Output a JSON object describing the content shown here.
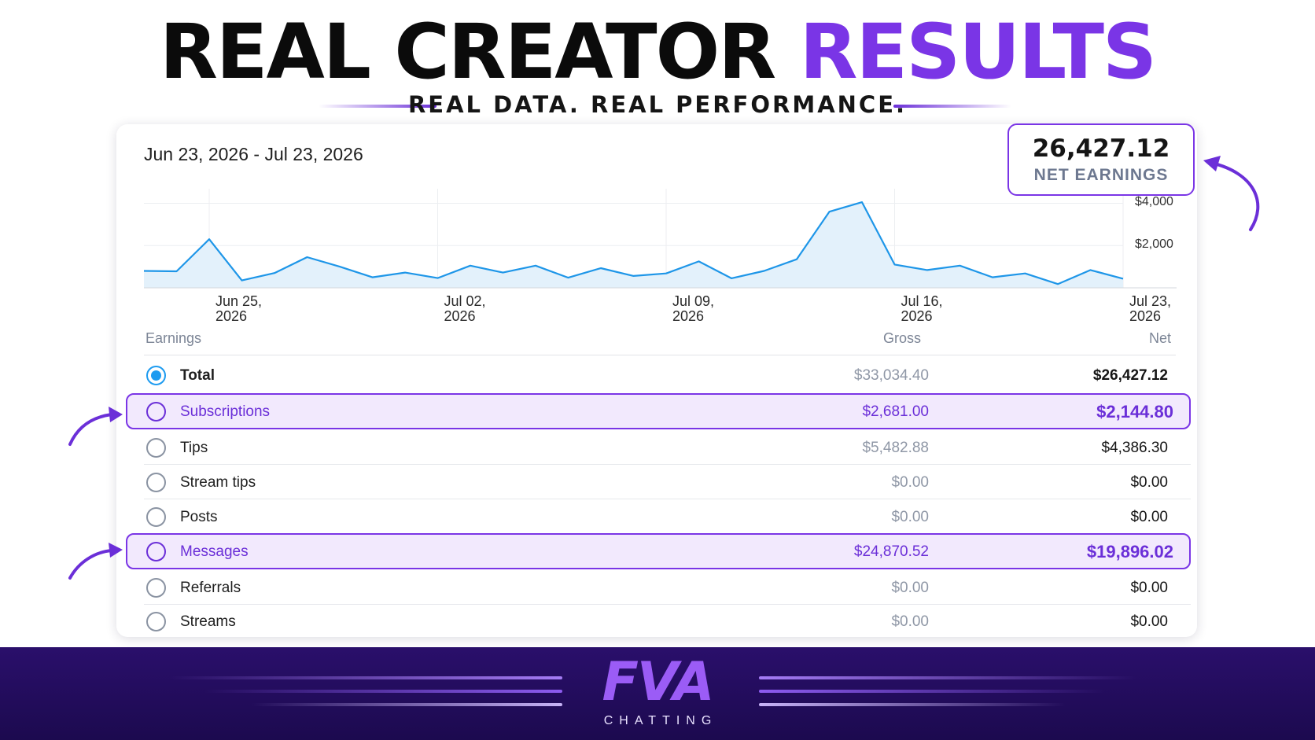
{
  "header": {
    "title_part1": "REAL CREATOR ",
    "title_part2": "RESULTS",
    "subtitle": "REAL DATA. REAL PERFORMANCE."
  },
  "summary": {
    "date_range": "Jun 23,  2026 - Jul 23, 2026",
    "net_value": "26,427.12",
    "net_label": "NET EARNINGS"
  },
  "chart_data": {
    "type": "area",
    "x_tick_labels": [
      [
        "Jun 25,",
        "2026"
      ],
      [
        "Jul 02,",
        "2026"
      ],
      [
        "Jul 09,",
        "2026"
      ],
      [
        "Jul 16,",
        "2026"
      ],
      [
        "Jul 23,",
        "2026"
      ]
    ],
    "x_tick_dates": [
      "2026-06-25",
      "2026-07-02",
      "2026-07-09",
      "2026-07-16",
      "2026-07-23"
    ],
    "y_tick_labels": [
      "$4,000",
      "$2,000"
    ],
    "y_ticks": [
      4000,
      2000
    ],
    "ylim": [
      0,
      4500
    ],
    "series": [
      {
        "dates": [
          "2026-06-23",
          "2026-06-24",
          "2026-06-25",
          "2026-06-26",
          "2026-06-27",
          "2026-06-28",
          "2026-06-29",
          "2026-06-30",
          "2026-07-01",
          "2026-07-02",
          "2026-07-03",
          "2026-07-04",
          "2026-07-05",
          "2026-07-06",
          "2026-07-07",
          "2026-07-08",
          "2026-07-09",
          "2026-07-10",
          "2026-07-11",
          "2026-07-12",
          "2026-07-13",
          "2026-07-14",
          "2026-07-15",
          "2026-07-16",
          "2026-07-17",
          "2026-07-18",
          "2026-07-19",
          "2026-07-20",
          "2026-07-21",
          "2026-07-22",
          "2026-07-23"
        ],
        "values": [
          800,
          780,
          2300,
          350,
          700,
          1450,
          1000,
          500,
          720,
          460,
          1050,
          720,
          1050,
          480,
          930,
          560,
          680,
          1250,
          450,
          800,
          1350,
          3600,
          4050,
          1100,
          840,
          1050,
          500,
          680,
          180,
          840,
          430
        ]
      }
    ],
    "grid": true,
    "color": "#1e96e8",
    "fill": "#e3f1fb"
  },
  "table": {
    "headers": {
      "label": "Earnings",
      "gross": "Gross",
      "net": "Net"
    },
    "rows": [
      {
        "label": "Total",
        "gross": "$33,034.40",
        "net": "$26,427.12",
        "selected": true
      },
      {
        "label": "Subscriptions",
        "gross": "$2,681.00",
        "net": "$2,144.80",
        "highlight": true
      },
      {
        "label": "Tips",
        "gross": "$5,482.88",
        "net": "$4,386.30"
      },
      {
        "label": "Stream tips",
        "gross": "$0.00",
        "net": "$0.00"
      },
      {
        "label": "Posts",
        "gross": "$0.00",
        "net": "$0.00"
      },
      {
        "label": "Messages",
        "gross": "$24,870.52",
        "net": "$19,896.02",
        "highlight": true
      },
      {
        "label": "Referrals",
        "gross": "$0.00",
        "net": "$0.00"
      },
      {
        "label": "Streams",
        "gross": "$0.00",
        "net": "$0.00"
      }
    ]
  },
  "brand": {
    "logo": "FVA",
    "sub": "CHATTING"
  },
  "colors": {
    "accent": "#7a35e6",
    "highlight_bg": "#f2e9fd",
    "footer_bg": "#1c0a4f",
    "line": "#1e96e8"
  }
}
